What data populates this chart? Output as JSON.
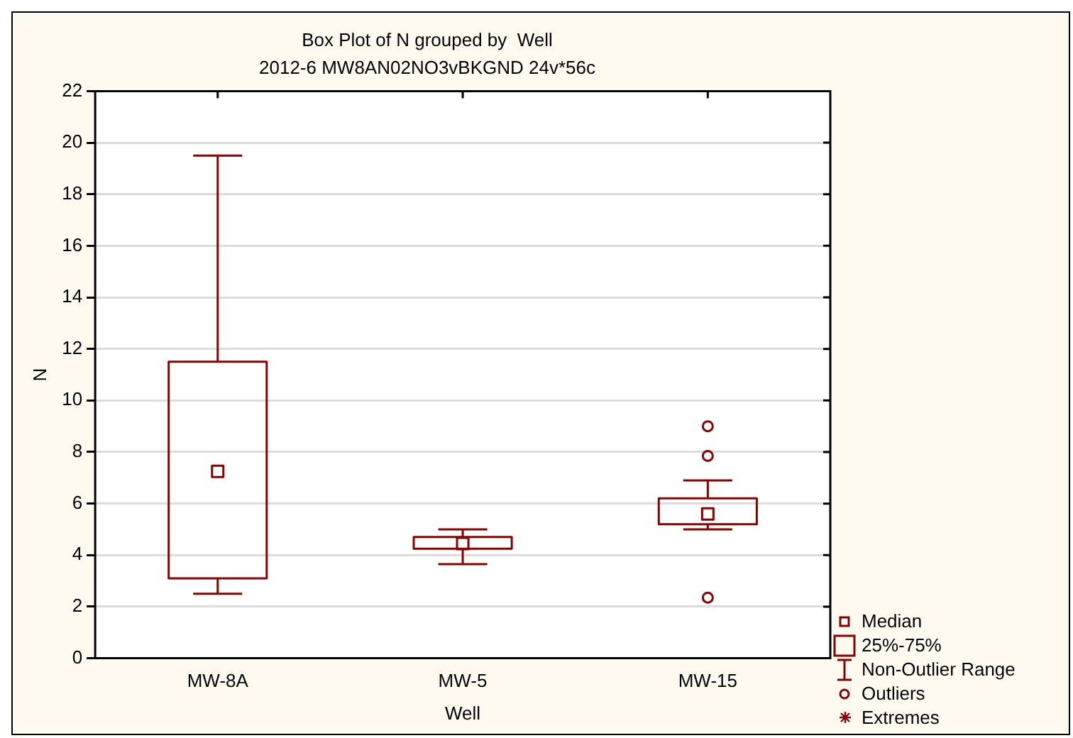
{
  "chart_data": {
    "type": "box",
    "title": "Box Plot of N grouped by  Well",
    "subtitle": "2012-6 MW8AN02NO3vBKGND 24v*56c",
    "xlabel": "Well",
    "ylabel": "N",
    "categories": [
      "MW-8A",
      "MW-5",
      "MW-15"
    ],
    "color": "#8b0000",
    "boxes": [
      {
        "low": 2.5,
        "q1": 3.1,
        "median": 7.25,
        "q3": 11.5,
        "high": 19.5
      },
      {
        "low": 3.65,
        "q1": 4.25,
        "median": 4.45,
        "q3": 4.7,
        "high": 5.0
      },
      {
        "low": 5.0,
        "q1": 5.2,
        "median": 5.6,
        "q3": 6.2,
        "high": 6.9,
        "outliers": [
          9.0,
          7.85,
          2.35
        ]
      }
    ],
    "ylim": [
      0,
      22
    ],
    "yticks": [
      0,
      2,
      4,
      6,
      8,
      10,
      12,
      14,
      16,
      18,
      20,
      22
    ],
    "grid": "y",
    "annotations": [
      "Median",
      "25%-75%",
      "Non-Outlier Range",
      "Outliers",
      "Extremes"
    ]
  }
}
